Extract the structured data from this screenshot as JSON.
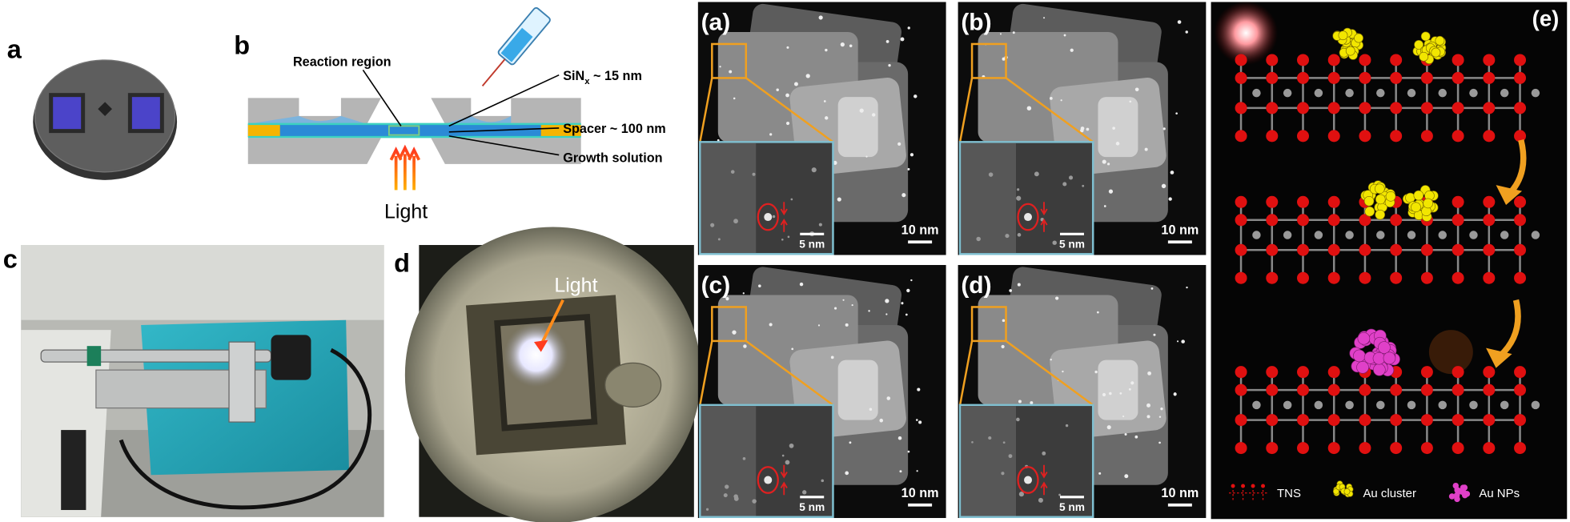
{
  "panels": {
    "a": {
      "label": "a"
    },
    "b": {
      "label": "b",
      "reaction_region": "Reaction region",
      "sinx": "SiN",
      "sinx_sub": "x",
      "sinx_rest": " ~ 15 nm",
      "spacer": "Spacer ~ 100 nm",
      "growth": "Growth solution",
      "light": "Light"
    },
    "c": {
      "label": "c"
    },
    "d": {
      "label": "d",
      "light": "Light"
    },
    "tem": [
      {
        "label": "(a)",
        "scale_large": "10 nm",
        "scale_small": "5 nm"
      },
      {
        "label": "(b)",
        "scale_large": "10 nm",
        "scale_small": "5 nm"
      },
      {
        "label": "(c)",
        "scale_large": "10 nm",
        "scale_small": "5 nm"
      },
      {
        "label": "(d)",
        "scale_large": "10 nm",
        "scale_small": "5 nm"
      }
    ],
    "e": {
      "label": "(e)",
      "legend": [
        "TNS",
        "Au cluster",
        "Au NPs"
      ]
    }
  }
}
